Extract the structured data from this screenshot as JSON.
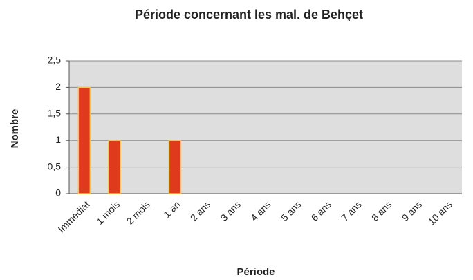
{
  "chart_data": {
    "type": "bar",
    "title": "Période concernant les mal. de Behçet",
    "x_label": "Période",
    "y_label": "Nombre",
    "categories": [
      "Immédiat",
      "1 mois",
      "2 mois",
      "1 an",
      "2 ans",
      "3 ans",
      "4 ans",
      "5 ans",
      "6 ans",
      "7 ans",
      "8 ans",
      "9 ans",
      "10 ans"
    ],
    "values": [
      2,
      1,
      0,
      1,
      0,
      0,
      0,
      0,
      0,
      0,
      0,
      0,
      0
    ],
    "color": "#e03a1c",
    "ylim": [
      0,
      2.5
    ],
    "yticks": [
      0,
      {
        "value": 0.5,
        "label": "0,5"
      },
      1,
      {
        "value": 1.5,
        "label": "1,5"
      },
      2,
      {
        "value": 2.5,
        "label": "2,5"
      }
    ],
    "grid": true
  }
}
